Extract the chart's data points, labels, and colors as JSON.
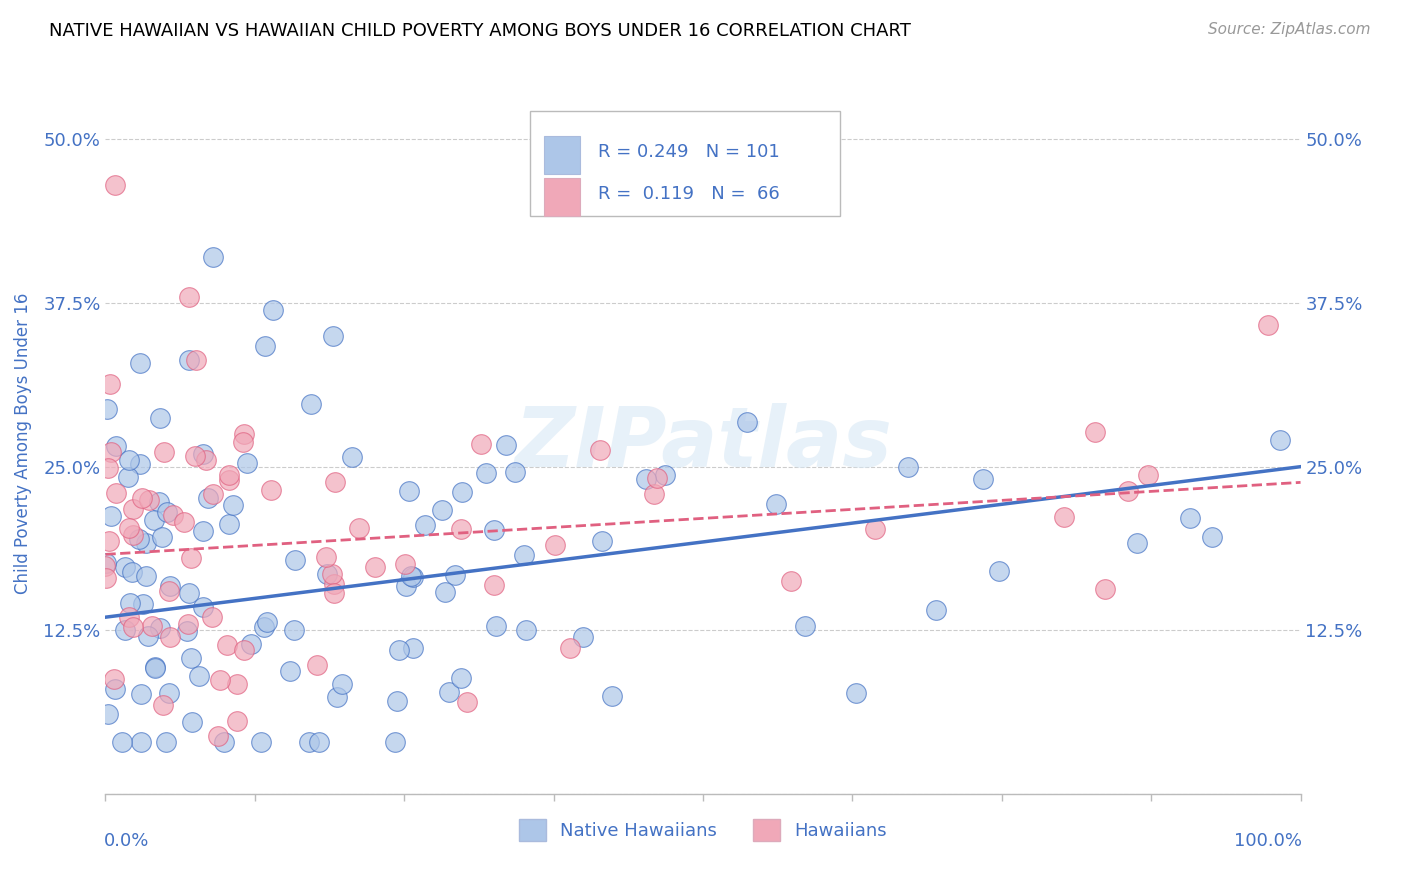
{
  "title": "NATIVE HAWAIIAN VS HAWAIIAN CHILD POVERTY AMONG BOYS UNDER 16 CORRELATION CHART",
  "source": "Source: ZipAtlas.com",
  "ylabel": "Child Poverty Among Boys Under 16",
  "yticks": [
    0.0,
    0.125,
    0.25,
    0.375,
    0.5
  ],
  "ytick_labels": [
    "",
    "12.5%",
    "25.0%",
    "37.5%",
    "50.0%"
  ],
  "R1": 0.249,
  "N1": 101,
  "R2": 0.119,
  "N2": 66,
  "color_blue": "#adc6e8",
  "color_pink": "#f0a8b8",
  "line_blue": "#4472c4",
  "line_pink": "#e06080",
  "legend_label1": "Native Hawaiians",
  "legend_label2": "Hawaiians",
  "watermark_text": "ZIPatlas",
  "blue_intercept": 0.135,
  "blue_slope": 0.115,
  "pink_intercept": 0.183,
  "pink_slope": 0.055,
  "ylim_max": 0.535,
  "title_fontsize": 13,
  "source_fontsize": 11,
  "tick_fontsize": 13,
  "ylabel_fontsize": 12
}
